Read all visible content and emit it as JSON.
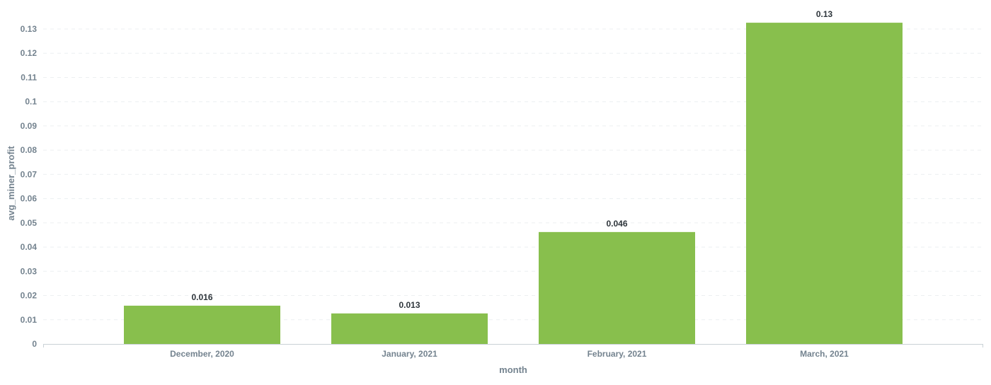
{
  "chart_data": {
    "type": "bar",
    "title": "",
    "xlabel": "month",
    "ylabel": "avg_miner_profit",
    "categories": [
      "December, 2020",
      "January, 2021",
      "February, 2021",
      "March, 2021"
    ],
    "values": [
      0.0158,
      0.0126,
      0.0462,
      0.1326
    ],
    "data_labels": [
      "0.016",
      "0.013",
      "0.046",
      "0.13"
    ],
    "ylim": [
      0,
      0.13
    ],
    "yticks": [
      "0",
      "0.01",
      "0.02",
      "0.03",
      "0.04",
      "0.05",
      "0.06",
      "0.07",
      "0.08",
      "0.09",
      "0.1",
      "0.11",
      "0.12",
      "0.13"
    ],
    "grid": true,
    "legend": "none",
    "bar_color": "#88bf4d",
    "grid_color": "#eceff1",
    "axis_color": "#c9d1d6"
  }
}
